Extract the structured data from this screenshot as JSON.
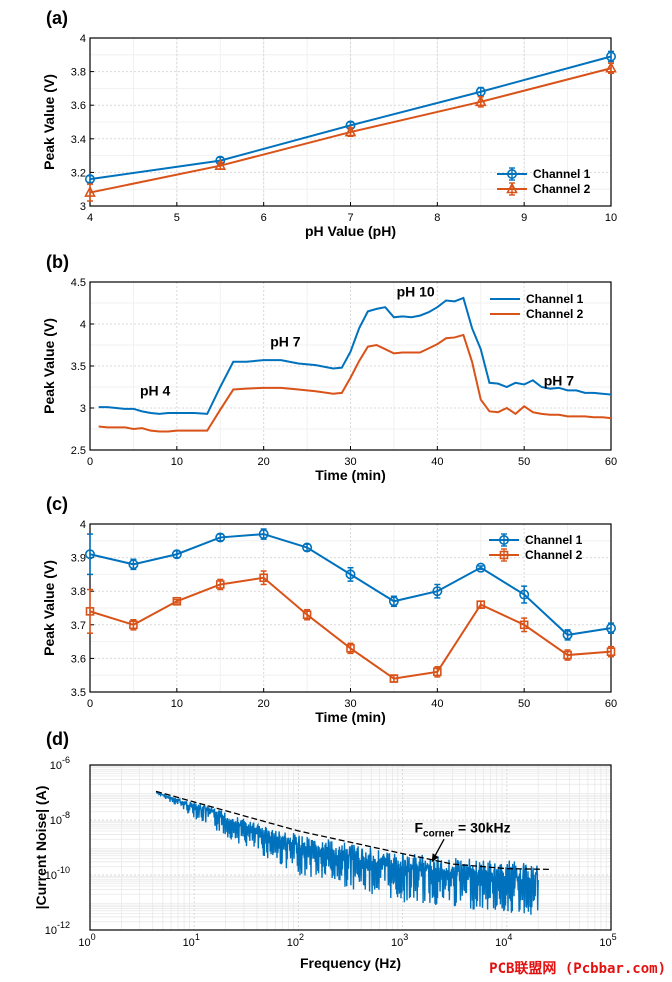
{
  "watermark": "PCB联盟网 (Pcbbar.com)",
  "colors": {
    "channel1": "#0072bd",
    "channel2": "#d95319",
    "grid": "#d9d9d9",
    "red": "#e31010"
  },
  "chart_data": [
    {
      "panel": "(a)",
      "type": "line",
      "xlabel": "pH Value (pH)",
      "ylabel": "Peak Value (V)",
      "xlim": [
        4,
        10
      ],
      "ylim": [
        3,
        4
      ],
      "xticks": [
        4,
        5,
        6,
        7,
        8,
        9,
        10
      ],
      "yticks": [
        3,
        3.2,
        3.4,
        3.6,
        3.8,
        4
      ],
      "ytick_labels": [
        "3",
        "3.2",
        "3.4",
        "3.6",
        "3.8",
        "4"
      ],
      "grid": true,
      "legend": "bottom-right",
      "x": [
        4,
        5.5,
        7,
        8.5,
        10
      ],
      "series": [
        {
          "name": "Channel 1",
          "marker": "circle",
          "values": [
            3.16,
            3.27,
            3.48,
            3.68,
            3.89
          ],
          "err": [
            0.02,
            0.02,
            0.02,
            0.025,
            0.03
          ]
        },
        {
          "name": "Channel 2",
          "marker": "triangle",
          "values": [
            3.08,
            3.24,
            3.44,
            3.62,
            3.82
          ],
          "err": [
            0.05,
            0.02,
            0.025,
            0.03,
            0.03
          ]
        }
      ]
    },
    {
      "panel": "(b)",
      "type": "line",
      "xlabel": "Time (min)",
      "ylabel": "Peak Value (V)",
      "xlim": [
        0,
        60
      ],
      "ylim": [
        2.5,
        4.5
      ],
      "xticks": [
        0,
        10,
        20,
        30,
        40,
        50,
        60
      ],
      "yticks": [
        2.5,
        3,
        3.5,
        4,
        4.5
      ],
      "ytick_labels": [
        "2.5",
        "3",
        "3.5",
        "4",
        "4.5"
      ],
      "grid": true,
      "legend": "top-right",
      "annotations": [
        {
          "text": "pH 4",
          "x": 7.5,
          "y": 3.15
        },
        {
          "text": "pH 7",
          "x": 22.5,
          "y": 3.73
        },
        {
          "text": "pH 10",
          "x": 37.5,
          "y": 4.33
        },
        {
          "text": "pH 7",
          "x": 54,
          "y": 3.27
        }
      ],
      "series": [
        {
          "name": "Channel 1",
          "x": [
            1,
            2,
            3,
            4,
            5,
            6,
            7,
            8,
            9,
            10,
            11,
            12,
            13.5,
            15,
            16.5,
            18,
            20,
            22,
            24,
            26,
            28,
            29,
            30,
            31,
            32,
            33,
            34,
            35,
            36,
            37,
            38,
            39,
            40,
            41,
            42,
            43,
            44,
            45,
            46,
            47,
            48,
            49,
            50,
            51,
            52,
            53,
            54,
            55,
            56,
            57,
            58,
            59,
            60
          ],
          "values": [
            3.01,
            3.01,
            3.0,
            2.99,
            2.99,
            2.96,
            2.94,
            2.93,
            2.94,
            2.94,
            2.94,
            2.94,
            2.93,
            3.25,
            3.55,
            3.55,
            3.57,
            3.57,
            3.53,
            3.51,
            3.47,
            3.48,
            3.67,
            3.95,
            4.15,
            4.18,
            4.2,
            4.08,
            4.09,
            4.08,
            4.1,
            4.14,
            4.2,
            4.28,
            4.27,
            4.31,
            3.95,
            3.7,
            3.3,
            3.29,
            3.25,
            3.3,
            3.28,
            3.33,
            3.25,
            3.23,
            3.24,
            3.21,
            3.21,
            3.18,
            3.18,
            3.17,
            3.16
          ]
        },
        {
          "name": "Channel 2",
          "x": [
            1,
            2,
            3,
            4,
            5,
            6,
            7,
            8,
            9,
            10,
            11,
            12,
            13.5,
            15,
            16.5,
            18,
            20,
            22,
            24,
            26,
            28,
            29,
            30,
            31,
            32,
            33,
            34,
            35,
            36,
            37,
            38,
            39,
            40,
            41,
            42,
            43,
            44,
            45,
            46,
            47,
            48,
            49,
            50,
            51,
            52,
            53,
            54,
            55,
            56,
            57,
            58,
            59,
            60
          ],
          "values": [
            2.78,
            2.77,
            2.77,
            2.77,
            2.75,
            2.76,
            2.73,
            2.72,
            2.72,
            2.73,
            2.73,
            2.73,
            2.73,
            2.98,
            3.22,
            3.23,
            3.24,
            3.24,
            3.22,
            3.2,
            3.17,
            3.18,
            3.36,
            3.56,
            3.73,
            3.75,
            3.7,
            3.65,
            3.66,
            3.66,
            3.66,
            3.71,
            3.76,
            3.83,
            3.84,
            3.87,
            3.55,
            3.1,
            2.96,
            2.95,
            3.0,
            2.93,
            3.02,
            2.95,
            2.93,
            2.92,
            2.92,
            2.9,
            2.9,
            2.9,
            2.89,
            2.89,
            2.88
          ]
        }
      ]
    },
    {
      "panel": "(c)",
      "type": "line",
      "xlabel": "Time (min)",
      "ylabel": "Peak Value (V)",
      "xlim": [
        0,
        60
      ],
      "ylim": [
        3.5,
        4
      ],
      "xticks": [
        0,
        10,
        20,
        30,
        40,
        50,
        60
      ],
      "yticks": [
        3.5,
        3.6,
        3.7,
        3.8,
        3.9,
        4
      ],
      "ytick_labels": [
        "3.5",
        "3.6",
        "3.7",
        "3.8",
        "3.9",
        "4"
      ],
      "grid": true,
      "legend": "top-right",
      "x": [
        0,
        5,
        10,
        15,
        20,
        25,
        30,
        35,
        40,
        45,
        50,
        55,
        60
      ],
      "series": [
        {
          "name": "Channel 1",
          "marker": "circle",
          "values": [
            3.91,
            3.88,
            3.91,
            3.96,
            3.97,
            3.93,
            3.85,
            3.77,
            3.8,
            3.87,
            3.79,
            3.67,
            3.69
          ],
          "err": [
            0.06,
            0.015,
            0.01,
            0.01,
            0.015,
            0.01,
            0.02,
            0.015,
            0.02,
            0.005,
            0.025,
            0.015,
            0.015
          ]
        },
        {
          "name": "Channel 2",
          "marker": "square",
          "values": [
            3.74,
            3.7,
            3.77,
            3.82,
            3.84,
            3.73,
            3.63,
            3.54,
            3.56,
            3.76,
            3.7,
            3.61,
            3.62
          ],
          "err": [
            0.065,
            0.015,
            0.005,
            0.015,
            0.02,
            0.015,
            0.015,
            0.01,
            0.015,
            0.01,
            0.02,
            0.015,
            0.015
          ]
        }
      ]
    },
    {
      "panel": "(d)",
      "type": "line",
      "scale": "log-log",
      "xlabel": "Frequency (Hz)",
      "ylabel": "|Current Noise| (A)",
      "xlim": [
        1,
        100000
      ],
      "ylim": [
        1e-12,
        1e-06
      ],
      "xticks_exp": [
        0,
        1,
        2,
        3,
        4,
        5
      ],
      "yticks_exp": [
        -12,
        -10,
        -8,
        -6
      ],
      "tick_base": "10",
      "grid": true,
      "annotation": {
        "main": "F",
        "sub": "corner",
        "rest": " = 30kHz"
      },
      "noise_frequency_range": [
        4.3,
        20000
      ],
      "noise_envelope": [
        {
          "f": 4.3,
          "min": 1e-07,
          "max": 1e-07
        },
        {
          "f": 14,
          "min": 5e-09,
          "max": 3e-08
        },
        {
          "f": 100,
          "min": 1e-10,
          "max": 3e-09
        },
        {
          "f": 1000,
          "min": 1e-11,
          "max": 7e-10
        },
        {
          "f": 20000,
          "min": 3e-12,
          "max": 3e-10
        }
      ],
      "fit_line": {
        "name": "dashed fit",
        "points": [
          [
            4.3,
            1.1e-07
          ],
          [
            100,
            4e-09
          ],
          [
            1000,
            6e-10
          ],
          [
            3000,
            2.5e-10
          ],
          [
            10000,
            1.7e-10
          ],
          [
            27000,
            1.6e-10
          ]
        ]
      }
    }
  ]
}
